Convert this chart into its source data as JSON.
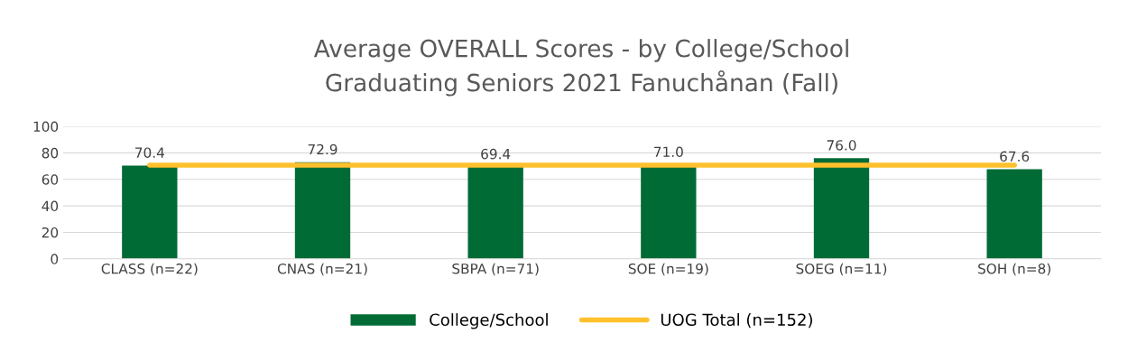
{
  "chart_data": {
    "type": "bar",
    "title": "Average OVERALL Scores - by College/School\nGraduating Seniors 2021 Fanuchånan (Fall)",
    "categories": [
      "CLASS (n=22)",
      "CNAS (n=21)",
      "SBPA (n=71)",
      "SOE (n=19)",
      "SOEG (n=11)",
      "SOH (n=8)"
    ],
    "series": [
      {
        "name": "College/School",
        "color": "#006b35",
        "values": [
          70.4,
          72.9,
          69.4,
          71.0,
          76.0,
          67.6
        ],
        "value_labels": [
          "70.4",
          "72.9",
          "69.4",
          "71.0",
          "76.0",
          "67.6"
        ]
      },
      {
        "name": "UOG Total (n=152)",
        "type": "line",
        "color": "#ffc02d",
        "values": [
          70.7,
          70.7,
          70.7,
          70.7,
          70.7,
          70.7
        ]
      }
    ],
    "ylim": [
      0,
      100
    ],
    "yticks": [
      0,
      20,
      40,
      60,
      80,
      100
    ],
    "grid": "y",
    "legend": "bottom"
  }
}
